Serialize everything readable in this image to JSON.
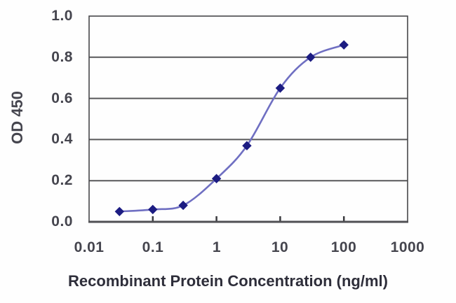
{
  "chart_data": {
    "type": "line",
    "title": "",
    "xlabel": "Recombinant Protein Concentration (ng/ml)",
    "ylabel": "OD 450",
    "x_scale": "log",
    "xlim": [
      0.01,
      1000
    ],
    "ylim": [
      0.0,
      1.0
    ],
    "grid": "horizontal",
    "legend": "none",
    "smooth": true,
    "marker": "diamond",
    "x": [
      0.03,
      0.1,
      0.3,
      1,
      3,
      10,
      30,
      100
    ],
    "series": [
      {
        "name": "OD 450",
        "values": [
          0.05,
          0.06,
          0.08,
          0.21,
          0.37,
          0.65,
          0.8,
          0.86
        ]
      }
    ],
    "x_ticks": [
      "0.01",
      "0.1",
      "1",
      "10",
      "100",
      "1000"
    ],
    "x_tick_values": [
      0.01,
      0.1,
      1,
      10,
      100,
      1000
    ],
    "y_ticks": [
      "0.0",
      "0.2",
      "0.4",
      "0.6",
      "0.8",
      "1.0"
    ],
    "y_tick_values": [
      0.0,
      0.2,
      0.4,
      0.6,
      0.8,
      1.0
    ],
    "colors": {
      "line": "#6f6fc2",
      "marker": "#1c1c82",
      "grid": "#58585a",
      "border": "#47474a",
      "axis": "#505054",
      "tick_mark": "#3a3a3e",
      "tick_label": "#45454e",
      "axis_label": "#2e2e3a",
      "background": "#fefefe"
    }
  }
}
